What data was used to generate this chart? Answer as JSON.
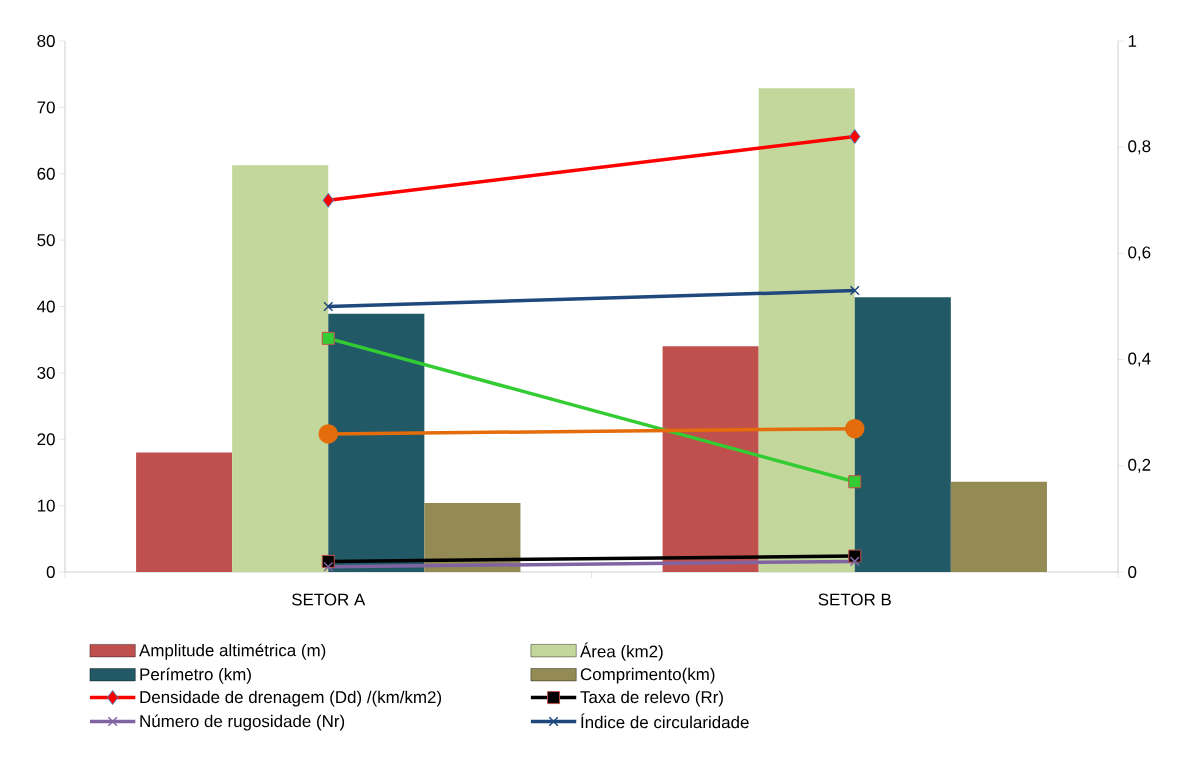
{
  "chart_data": {
    "type": "bar",
    "categories": [
      "SETOR A",
      "SETOR B"
    ],
    "series": [
      {
        "name": "Amplitude altimétrica (m)",
        "color": "#c0504d",
        "values": [
          18,
          34
        ]
      },
      {
        "name": "Área (km2)",
        "color": "#c3d69b",
        "values": [
          61.3,
          72.9
        ]
      },
      {
        "name": "Perímetro (km)",
        "color": "#215967",
        "values": [
          38.9,
          41.4
        ]
      },
      {
        "name": "Comprimento(km)",
        "color": "#948a54",
        "values": [
          10.4,
          13.6
        ]
      },
      {
        "name": "Densidade de drenagem (Dd) /(km/km2)",
        "type": "line",
        "axis": "y2",
        "color": "#ff0000",
        "marker": "diamond",
        "values": [
          0.7,
          0.82
        ]
      },
      {
        "name": "Taxa de relevo (Rr)",
        "type": "line",
        "axis": "y2",
        "color": "#000000",
        "marker": "square",
        "values": [
          0.02,
          0.03
        ]
      },
      {
        "name": "Número de rugosidade (Nr)",
        "type": "line",
        "axis": "y2",
        "color": "#8064a2",
        "marker": "cross",
        "values": [
          0.01,
          0.02
        ]
      },
      {
        "name": "Índice de circularidade",
        "type": "line",
        "axis": "y2",
        "color": "#1f497d",
        "marker": "cross",
        "values": [
          0.5,
          0.53
        ]
      },
      {
        "type": "line",
        "axis": "y2",
        "color": "#33cc33",
        "marker": "square",
        "values": [
          0.44,
          0.17
        ]
      },
      {
        "type": "line",
        "axis": "y2",
        "color": "#e46c0a",
        "marker": "circle",
        "values": [
          0.26,
          0.27
        ]
      }
    ],
    "ylim": [
      0,
      80
    ],
    "yticks": [
      0,
      10,
      20,
      30,
      40,
      50,
      60,
      70,
      80
    ],
    "y2lim": [
      0,
      1
    ],
    "y2ticks": [
      0,
      {
        "value": 0.2,
        "label": "0,2"
      },
      {
        "value": 0.4,
        "label": "0,4"
      },
      {
        "value": 0.6,
        "label": "0,6"
      },
      {
        "value": 0.8,
        "label": "0,8"
      },
      1
    ],
    "legend": "bottom"
  }
}
